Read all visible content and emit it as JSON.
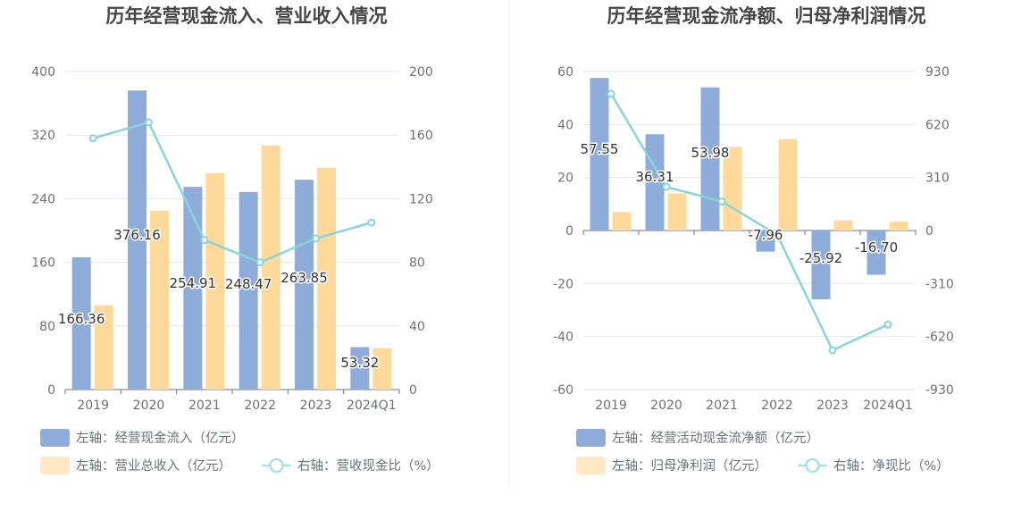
{
  "colors": {
    "bar_left": "#8eacd9",
    "bar_right": "#ffd99a",
    "line": "#88d5d9",
    "legend_left": "#8eacd9",
    "legend_right": "#ffe8c2",
    "legend_line": "#a9e2e5"
  },
  "chart_data": [
    {
      "type": "bar",
      "title": "历年经营现金流入、营业收入情况",
      "categories": [
        "2019",
        "2020",
        "2021",
        "2022",
        "2023",
        "2024Q1"
      ],
      "left_axis": {
        "min": 0,
        "max": 400,
        "ticks": [
          0,
          80,
          160,
          240,
          320,
          400
        ]
      },
      "right_axis": {
        "min": 0,
        "max": 200,
        "ticks": [
          0,
          40,
          80,
          120,
          160,
          200
        ]
      },
      "series": [
        {
          "name": "左轴：经营现金流入（亿元）",
          "kind": "bar",
          "axis": "left",
          "values": [
            166.36,
            376.16,
            254.91,
            248.47,
            263.85,
            53.32
          ],
          "labels": [
            "166.36",
            "376.16",
            "254.91",
            "248.47",
            "263.85",
            "53.32"
          ]
        },
        {
          "name": "左轴：营业总收入（亿元）",
          "kind": "bar",
          "axis": "left",
          "values": [
            106,
            225,
            272,
            307,
            279,
            52
          ]
        },
        {
          "name": "右轴：营收现金比（%）",
          "kind": "line",
          "axis": "right",
          "values": [
            158,
            168,
            94,
            80,
            95,
            105
          ]
        }
      ],
      "grid": true,
      "legend_position": "bottom-left"
    },
    {
      "type": "bar",
      "title": "历年经营现金流净额、归母净利润情况",
      "categories": [
        "2019",
        "2020",
        "2021",
        "2022",
        "2023",
        "2024Q1"
      ],
      "left_axis": {
        "min": -60,
        "max": 60,
        "ticks": [
          -60,
          -40,
          -20,
          0,
          20,
          40,
          60
        ]
      },
      "right_axis": {
        "min": -930,
        "max": 930,
        "ticks": [
          "-930",
          "-620",
          "-310",
          "0",
          "310",
          "620",
          "930"
        ]
      },
      "series": [
        {
          "name": "左轴：经营活动现金流净额（亿元）",
          "kind": "bar",
          "axis": "left",
          "values": [
            57.55,
            36.31,
            53.98,
            -7.96,
            -25.92,
            -16.7
          ],
          "labels": [
            "57.55",
            "36.31",
            "53.98",
            "-7.96",
            "-25.92",
            "-16.70"
          ]
        },
        {
          "name": "左轴：归母净利润（亿元）",
          "kind": "bar",
          "axis": "left",
          "values": [
            7,
            14,
            31.5,
            34.5,
            3.8,
            3.3
          ]
        },
        {
          "name": "右轴：净现比（%）",
          "kind": "line",
          "axis": "right",
          "values": [
            800,
            255,
            170,
            -25,
            -700,
            -550
          ]
        }
      ],
      "grid": true,
      "legend_position": "bottom-left"
    }
  ]
}
